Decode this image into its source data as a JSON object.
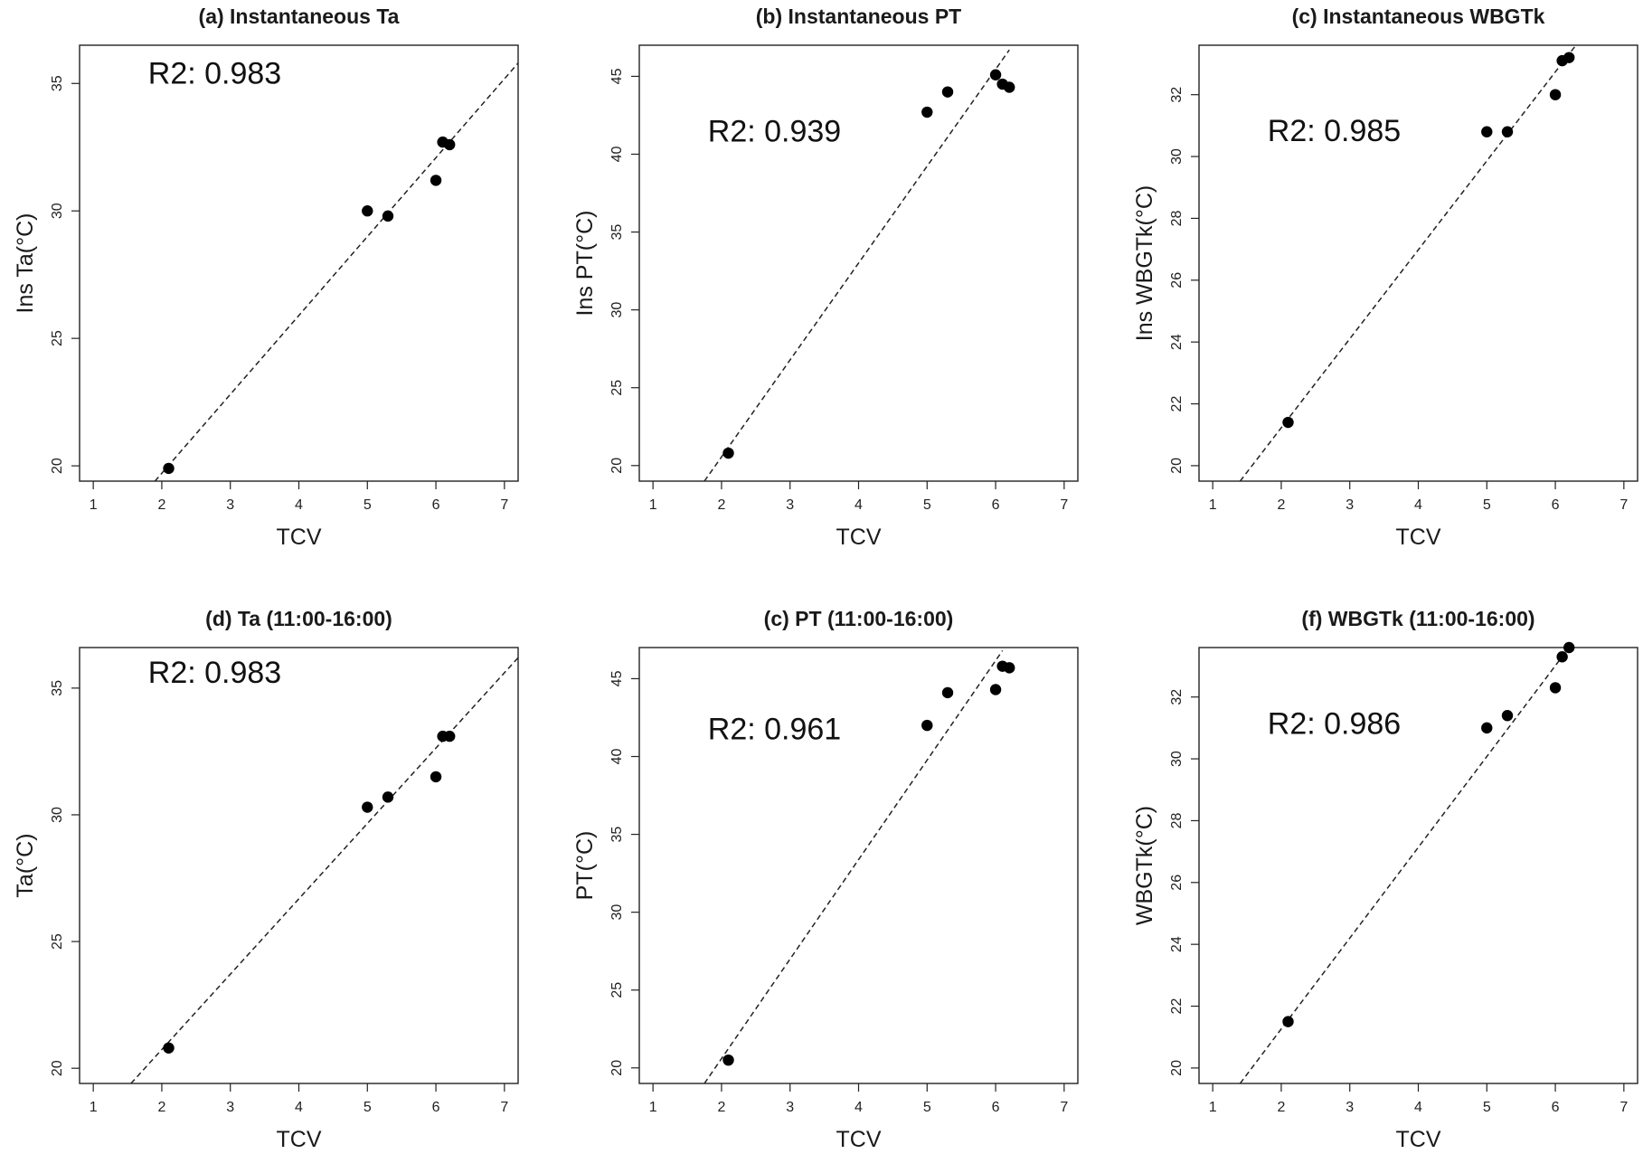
{
  "chart_data": [
    {
      "type": "scatter",
      "title": "(a) Instantaneous Ta",
      "xlabel": "TCV",
      "ylabel": "Ins Ta(°C)",
      "xlim": [
        0.8,
        7.2
      ],
      "ylim": [
        19.4,
        36.5
      ],
      "xticks": [
        1,
        2,
        3,
        4,
        5,
        6,
        7
      ],
      "yticks": [
        20,
        25,
        30,
        35
      ],
      "x": [
        2.1,
        5.0,
        5.3,
        6.0,
        6.1,
        6.2
      ],
      "y": [
        19.9,
        30.0,
        29.8,
        31.2,
        32.7,
        32.6
      ],
      "fit_line": {
        "x": [
          1.9,
          7.2
        ],
        "y": [
          19.4,
          35.8
        ]
      },
      "annotation": "R2: 0.983",
      "annotation_pos": {
        "x": 1.8,
        "y": 35.0
      },
      "grid": false,
      "legend": "none"
    },
    {
      "type": "scatter",
      "title": "(b) Instantaneous PT",
      "xlabel": "TCV",
      "ylabel": "Ins PT(°C)",
      "xlim": [
        0.8,
        7.2
      ],
      "ylim": [
        19.0,
        47.0
      ],
      "xticks": [
        1,
        2,
        3,
        4,
        5,
        6,
        7
      ],
      "yticks": [
        20,
        25,
        30,
        35,
        40,
        45
      ],
      "x": [
        2.1,
        5.0,
        5.3,
        6.0,
        6.1,
        6.2
      ],
      "y": [
        20.8,
        42.7,
        44.0,
        45.1,
        44.5,
        44.3
      ],
      "fit_line": {
        "x": [
          1.75,
          6.2
        ],
        "y": [
          19.0,
          46.7
        ]
      },
      "annotation": "R2: 0.939",
      "annotation_pos": {
        "x": 1.8,
        "y": 40.8
      },
      "grid": false,
      "legend": "none"
    },
    {
      "type": "scatter",
      "title": "(c) Instantaneous WBGTk",
      "xlabel": "TCV",
      "ylabel": "Ins WBGTk(°C)",
      "xlim": [
        0.8,
        7.2
      ],
      "ylim": [
        19.5,
        33.6
      ],
      "xticks": [
        1,
        2,
        3,
        4,
        5,
        6,
        7
      ],
      "yticks": [
        20,
        22,
        24,
        26,
        28,
        30,
        32
      ],
      "x": [
        2.1,
        5.0,
        5.3,
        6.0,
        6.1,
        6.2
      ],
      "y": [
        21.4,
        30.8,
        30.8,
        32.0,
        33.1,
        33.2
      ],
      "fit_line": {
        "x": [
          1.4,
          6.3
        ],
        "y": [
          19.5,
          33.6
        ]
      },
      "annotation": "R2: 0.985",
      "annotation_pos": {
        "x": 1.8,
        "y": 30.5
      },
      "grid": false,
      "legend": "none"
    },
    {
      "type": "scatter",
      "title": "(d)  Ta (11:00-16:00)",
      "xlabel": "TCV",
      "ylabel": "Ta(°C)",
      "xlim": [
        0.8,
        7.2
      ],
      "ylim": [
        19.4,
        36.6
      ],
      "xticks": [
        1,
        2,
        3,
        4,
        5,
        6,
        7
      ],
      "yticks": [
        20,
        25,
        30,
        35
      ],
      "x": [
        2.1,
        5.0,
        5.3,
        6.0,
        6.1,
        6.2
      ],
      "y": [
        20.8,
        30.3,
        30.7,
        31.5,
        33.1,
        33.1
      ],
      "fit_line": {
        "x": [
          1.55,
          7.2
        ],
        "y": [
          19.4,
          36.2
        ]
      },
      "annotation": "R2: 0.983",
      "annotation_pos": {
        "x": 1.8,
        "y": 35.2
      },
      "grid": false,
      "legend": "none"
    },
    {
      "type": "scatter",
      "title": "(c)  PT (11:00-16:00)",
      "xlabel": "TCV",
      "ylabel": "PT(°C)",
      "xlim": [
        0.8,
        7.2
      ],
      "ylim": [
        19.0,
        47.0
      ],
      "xticks": [
        1,
        2,
        3,
        4,
        5,
        6,
        7
      ],
      "yticks": [
        20,
        25,
        30,
        35,
        40,
        45
      ],
      "x": [
        2.1,
        5.0,
        5.3,
        6.0,
        6.1,
        6.2
      ],
      "y": [
        20.5,
        42.0,
        44.1,
        44.3,
        45.8,
        45.7
      ],
      "fit_line": {
        "x": [
          1.75,
          6.1
        ],
        "y": [
          19.0,
          46.8
        ]
      },
      "annotation": "R2: 0.961",
      "annotation_pos": {
        "x": 1.8,
        "y": 41.1
      },
      "grid": false,
      "legend": "none"
    },
    {
      "type": "scatter",
      "title": "(f)  WBGTk (11:00-16:00)",
      "xlabel": "TCV",
      "ylabel": "WBGTk(°C)",
      "xlim": [
        0.8,
        7.2
      ],
      "ylim": [
        19.5,
        33.6
      ],
      "xticks": [
        1,
        2,
        3,
        4,
        5,
        6,
        7
      ],
      "yticks": [
        20,
        22,
        24,
        26,
        28,
        30,
        32
      ],
      "x": [
        2.1,
        5.0,
        5.3,
        6.0,
        6.1,
        6.2
      ],
      "y": [
        21.5,
        31.0,
        31.4,
        32.3,
        33.3,
        33.6
      ],
      "fit_line": {
        "x": [
          1.4,
          6.2
        ],
        "y": [
          19.5,
          33.6
        ]
      },
      "annotation": "R2: 0.986",
      "annotation_pos": {
        "x": 1.8,
        "y": 30.8
      },
      "grid": false,
      "legend": "none"
    }
  ]
}
